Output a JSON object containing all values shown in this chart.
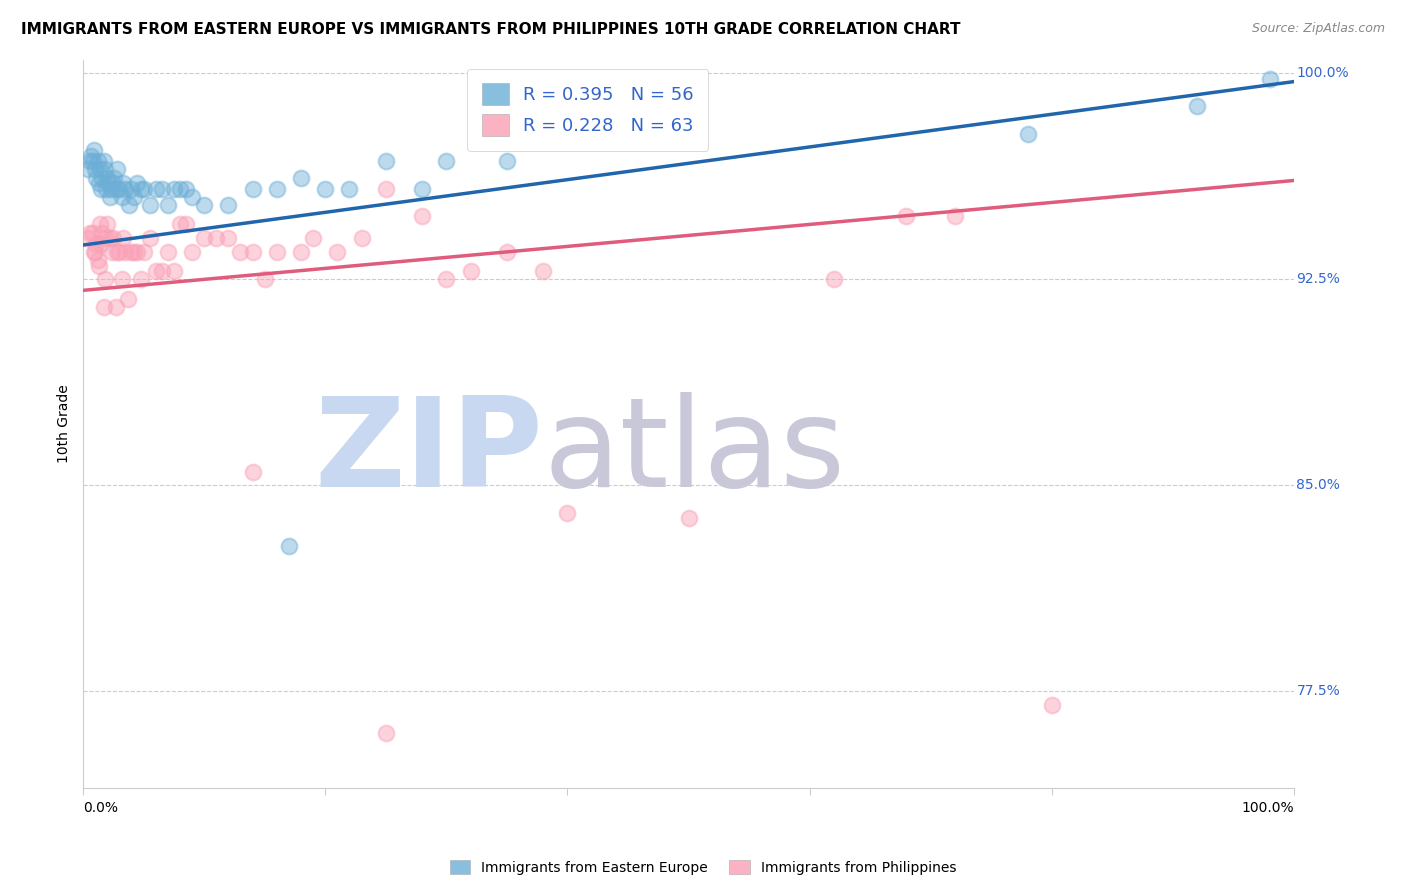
{
  "title": "IMMIGRANTS FROM EASTERN EUROPE VS IMMIGRANTS FROM PHILIPPINES 10TH GRADE CORRELATION CHART",
  "source": "Source: ZipAtlas.com",
  "ylabel": "10th Grade",
  "xmin": 0.0,
  "xmax": 1.0,
  "ymin": 0.74,
  "ymax": 1.005,
  "yticks": [
    0.775,
    0.85,
    0.925,
    1.0
  ],
  "ytick_labels": [
    "77.5%",
    "85.0%",
    "92.5%",
    "100.0%"
  ],
  "blue_label": "Immigrants from Eastern Europe",
  "pink_label": "Immigrants from Philippines",
  "blue_R": 0.395,
  "blue_N": 56,
  "pink_R": 0.228,
  "pink_N": 63,
  "blue_color": "#6baed6",
  "pink_color": "#fa9fb5",
  "blue_line_color": "#2166ac",
  "pink_line_color": "#e05c7c",
  "legend_text_color": "#3366cc",
  "watermark_zip_color": "#c8d8f0",
  "watermark_atlas_color": "#c8c8d8",
  "blue_x": [
    0.004,
    0.006,
    0.007,
    0.008,
    0.009,
    0.01,
    0.011,
    0.012,
    0.013,
    0.014,
    0.015,
    0.016,
    0.017,
    0.018,
    0.019,
    0.02,
    0.021,
    0.022,
    0.023,
    0.025,
    0.026,
    0.027,
    0.028,
    0.03,
    0.032,
    0.033,
    0.035,
    0.038,
    0.04,
    0.042,
    0.045,
    0.048,
    0.05,
    0.055,
    0.06,
    0.065,
    0.07,
    0.075,
    0.08,
    0.085,
    0.09,
    0.1,
    0.12,
    0.14,
    0.16,
    0.18,
    0.2,
    0.22,
    0.25,
    0.28,
    0.3,
    0.35,
    0.17,
    0.78,
    0.92,
    0.98
  ],
  "blue_y": [
    0.965,
    0.968,
    0.97,
    0.968,
    0.972,
    0.965,
    0.962,
    0.968,
    0.96,
    0.965,
    0.958,
    0.962,
    0.968,
    0.965,
    0.958,
    0.962,
    0.96,
    0.955,
    0.958,
    0.96,
    0.962,
    0.958,
    0.965,
    0.958,
    0.955,
    0.96,
    0.958,
    0.952,
    0.958,
    0.955,
    0.96,
    0.958,
    0.958,
    0.952,
    0.958,
    0.958,
    0.952,
    0.958,
    0.958,
    0.958,
    0.955,
    0.952,
    0.952,
    0.958,
    0.958,
    0.962,
    0.958,
    0.958,
    0.968,
    0.958,
    0.968,
    0.968,
    0.828,
    0.978,
    0.988,
    0.998
  ],
  "pink_x": [
    0.004,
    0.006,
    0.008,
    0.009,
    0.01,
    0.011,
    0.012,
    0.013,
    0.014,
    0.015,
    0.016,
    0.017,
    0.018,
    0.019,
    0.02,
    0.022,
    0.024,
    0.025,
    0.027,
    0.028,
    0.03,
    0.032,
    0.033,
    0.035,
    0.037,
    0.04,
    0.042,
    0.045,
    0.048,
    0.05,
    0.055,
    0.06,
    0.065,
    0.07,
    0.075,
    0.08,
    0.085,
    0.09,
    0.1,
    0.11,
    0.12,
    0.13,
    0.14,
    0.15,
    0.16,
    0.18,
    0.19,
    0.21,
    0.23,
    0.25,
    0.28,
    0.32,
    0.35,
    0.38,
    0.4,
    0.14,
    0.25,
    0.5,
    0.62,
    0.68,
    0.72,
    0.8,
    0.3
  ],
  "pink_y": [
    0.94,
    0.942,
    0.942,
    0.935,
    0.935,
    0.938,
    0.932,
    0.93,
    0.945,
    0.938,
    0.942,
    0.915,
    0.925,
    0.94,
    0.945,
    0.94,
    0.935,
    0.94,
    0.915,
    0.935,
    0.935,
    0.925,
    0.94,
    0.935,
    0.918,
    0.935,
    0.935,
    0.935,
    0.925,
    0.935,
    0.94,
    0.928,
    0.928,
    0.935,
    0.928,
    0.945,
    0.945,
    0.935,
    0.94,
    0.94,
    0.94,
    0.935,
    0.935,
    0.925,
    0.935,
    0.935,
    0.94,
    0.935,
    0.94,
    0.958,
    0.948,
    0.928,
    0.935,
    0.928,
    0.84,
    0.855,
    0.76,
    0.838,
    0.925,
    0.948,
    0.948,
    0.77,
    0.925
  ],
  "blue_trend_y_start": 0.9375,
  "blue_trend_y_end": 0.997,
  "pink_trend_y_start": 0.921,
  "pink_trend_y_end": 0.961,
  "grid_color": "#cccccc",
  "background_color": "#ffffff",
  "title_fontsize": 11,
  "axis_label_fontsize": 10,
  "tick_fontsize": 10,
  "legend_fontsize": 13,
  "marker_size": 130,
  "marker_alpha": 0.45,
  "line_width": 2.5
}
